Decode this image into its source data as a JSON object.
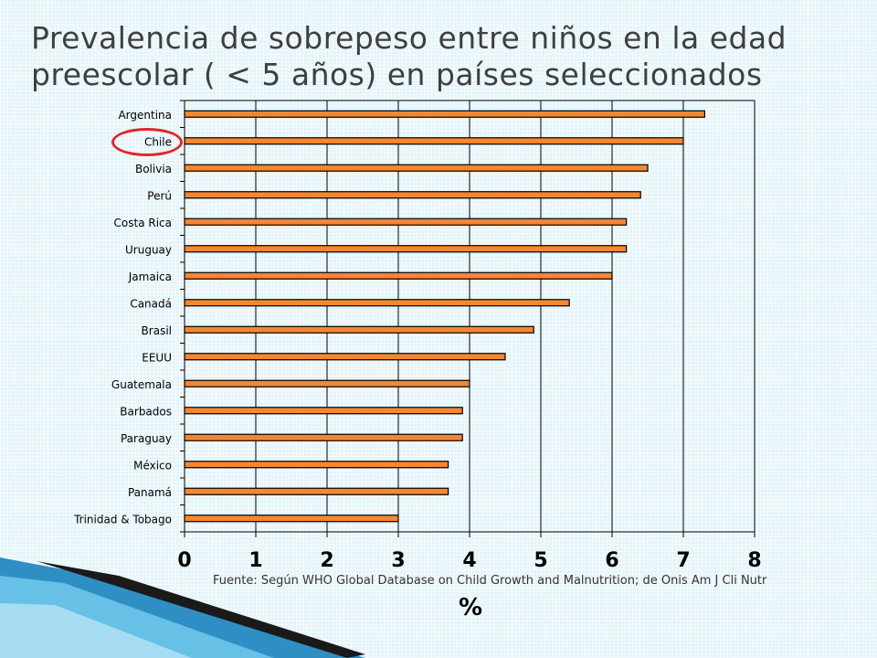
{
  "title": "Prevalencia de sobrepeso entre niños en la edad preescolar ( < 5 años) en países seleccionados",
  "source_note": "Fuente: Según WHO Global Database on Child Growth and Malnutrition; de Onis Am J Cli Nutr",
  "highlighted_category": "Chile",
  "colors": {
    "bar_fill": "#f58632",
    "bar_stroke": "#000000",
    "highlight": "#e0262b"
  },
  "chart_data": {
    "type": "bar",
    "orientation": "horizontal",
    "categories": [
      "Argentina",
      "Chile",
      "Bolivia",
      "Perú",
      "Costa Rica",
      "Uruguay",
      "Jamaica",
      "Canadá",
      "Brasil",
      "EEUU",
      "Guatemala",
      "Barbados",
      "Paraguay",
      "México",
      "Panamá",
      "Trinidad & Tobago"
    ],
    "values": [
      7.3,
      7.0,
      6.5,
      6.4,
      6.2,
      6.2,
      6.0,
      5.4,
      4.9,
      4.5,
      4.0,
      3.9,
      3.9,
      3.7,
      3.7,
      3.0
    ],
    "xlabel": "%",
    "xlim": [
      0,
      8
    ],
    "xticks": [
      0,
      1,
      2,
      3,
      4,
      5,
      6,
      7,
      8
    ],
    "grid": "vertical"
  }
}
